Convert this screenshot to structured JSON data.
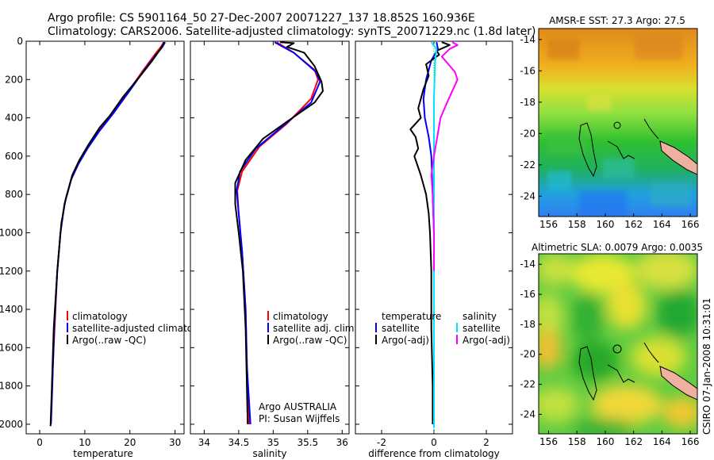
{
  "header": {
    "line1": "Argo profile: CS 5901164_50 27-Dec-2007 20071227_137 18.852S 160.936E",
    "line2": "Climatology: CARS2006. Satellite-adjusted climatology: synTS_20071229.nc (1.8d later)"
  },
  "credit": "CSIRO 07-Jan-2008 10:31:01",
  "colors": {
    "climatology": "#ff0000",
    "satellite": "#0000ff",
    "argo": "#000000",
    "diff_satellite_salinity": "#00e5ff",
    "diff_argo_salinity": "#ff00ff"
  },
  "chart_data": [
    {
      "type": "line",
      "ylim": [
        2050,
        0
      ],
      "yticks": [
        0,
        200,
        400,
        600,
        800,
        1000,
        1200,
        1400,
        1600,
        1800,
        2000
      ],
      "xlim": [
        -3,
        32
      ],
      "xticks": [
        0,
        10,
        20,
        30
      ],
      "xlabel": "temperature",
      "legend": [
        "climatology",
        "satellite-adjusted climatology",
        "Argo(..raw -QC)"
      ],
      "series": [
        {
          "name": "climatology",
          "color": "#ff0000",
          "points": [
            [
              27.5,
              5
            ],
            [
              27,
              25
            ],
            [
              25.5,
              70
            ],
            [
              23,
              150
            ],
            [
              20,
              250
            ],
            [
              16,
              380
            ],
            [
              13,
              470
            ],
            [
              10.5,
              560
            ],
            [
              8.5,
              640
            ],
            [
              7,
              720
            ],
            [
              5.5,
              850
            ],
            [
              4.6,
              1000
            ],
            [
              3.9,
              1200
            ],
            [
              3.3,
              1500
            ],
            [
              2.7,
              1800
            ]
          ]
        },
        {
          "name": "satellite-adjusted climatology",
          "color": "#0000ff",
          "points": [
            [
              27.8,
              5
            ],
            [
              27.2,
              30
            ],
            [
              25.8,
              70
            ],
            [
              23.2,
              150
            ],
            [
              20.2,
              250
            ],
            [
              16.2,
              380
            ],
            [
              13.2,
              470
            ],
            [
              10.6,
              560
            ],
            [
              8.6,
              640
            ],
            [
              7,
              720
            ],
            [
              5.5,
              850
            ],
            [
              4.6,
              1000
            ],
            [
              3.9,
              1200
            ],
            [
              3.2,
              1500
            ],
            [
              2.8,
              1800
            ],
            [
              2.5,
              2000
            ]
          ]
        },
        {
          "name": "Argo(..raw -QC)",
          "color": "#000000",
          "points": [
            [
              27.6,
              5
            ],
            [
              26.8,
              40
            ],
            [
              25,
              100
            ],
            [
              22,
              190
            ],
            [
              18.5,
              290
            ],
            [
              15.5,
              390
            ],
            [
              13.3,
              450
            ],
            [
              10.8,
              540
            ],
            [
              8.8,
              620
            ],
            [
              7.2,
              700
            ],
            [
              5.8,
              820
            ],
            [
              4.8,
              950
            ],
            [
              3.9,
              1200
            ],
            [
              3.1,
              1500
            ],
            [
              2.7,
              1800
            ],
            [
              2.4,
              2010
            ]
          ]
        }
      ]
    },
    {
      "type": "line",
      "ylim": [
        2050,
        0
      ],
      "xlim": [
        33.8,
        36.1
      ],
      "xticks": [
        34,
        34.5,
        35,
        35.5,
        36
      ],
      "xlabel": "salinity",
      "legend": [
        "climatology",
        "satellite adj. clim.",
        "Argo(..raw -QC)"
      ],
      "annotation": [
        "Argo AUSTRALIA",
        "PI: Susan Wijffels"
      ],
      "series": [
        {
          "name": "climatology",
          "color": "#ff0000",
          "points": [
            [
              35.05,
              5
            ],
            [
              35.3,
              60
            ],
            [
              35.6,
              150
            ],
            [
              35.65,
              200
            ],
            [
              35.55,
              300
            ],
            [
              35.2,
              430
            ],
            [
              34.8,
              550
            ],
            [
              34.55,
              680
            ],
            [
              34.48,
              780
            ],
            [
              34.5,
              900
            ],
            [
              34.55,
              1100
            ],
            [
              34.6,
              1400
            ],
            [
              34.62,
              1700
            ],
            [
              34.65,
              2000
            ]
          ]
        },
        {
          "name": "satellite adj. clim.",
          "color": "#0000ff",
          "points": [
            [
              35.02,
              5
            ],
            [
              35.3,
              60
            ],
            [
              35.62,
              160
            ],
            [
              35.68,
              210
            ],
            [
              35.55,
              320
            ],
            [
              35.15,
              440
            ],
            [
              34.75,
              560
            ],
            [
              34.52,
              680
            ],
            [
              34.47,
              780
            ],
            [
              34.5,
              900
            ],
            [
              34.55,
              1100
            ],
            [
              34.6,
              1400
            ],
            [
              34.62,
              1700
            ],
            [
              34.67,
              2000
            ]
          ]
        },
        {
          "name": "Argo(..raw -QC)",
          "color": "#000000",
          "points": [
            [
              35.1,
              5
            ],
            [
              35.3,
              10
            ],
            [
              35.2,
              30
            ],
            [
              35.45,
              60
            ],
            [
              35.6,
              130
            ],
            [
              35.7,
              210
            ],
            [
              35.72,
              260
            ],
            [
              35.6,
              320
            ],
            [
              35.2,
              420
            ],
            [
              34.85,
              510
            ],
            [
              34.6,
              620
            ],
            [
              34.45,
              740
            ],
            [
              34.45,
              850
            ],
            [
              34.5,
              1000
            ],
            [
              34.56,
              1200
            ],
            [
              34.6,
              1500
            ],
            [
              34.63,
              2000
            ]
          ]
        }
      ]
    },
    {
      "type": "line",
      "ylim": [
        2050,
        0
      ],
      "xlim": [
        -3,
        3
      ],
      "xticks": [
        -2,
        0,
        2
      ],
      "xlabel": "difference from climatology",
      "legend_headers": [
        "temperature",
        "salinity"
      ],
      "legend": [
        {
          "label": "satellite",
          "color": "#0000ff"
        },
        {
          "label": "satellite",
          "color": "#00e5ff"
        },
        {
          "label": "Argo(-adj)",
          "color": "#000000"
        },
        {
          "label": "Argo(-adj)",
          "color": "#ff00ff"
        }
      ],
      "series": [
        {
          "name": "temperature satellite",
          "color": "#0000ff",
          "points": [
            [
              0.1,
              5
            ],
            [
              0.15,
              40
            ],
            [
              -0.1,
              100
            ],
            [
              -0.3,
              200
            ],
            [
              -0.4,
              300
            ],
            [
              -0.35,
              400
            ],
            [
              -0.2,
              500
            ],
            [
              -0.1,
              600
            ],
            [
              -0.05,
              800
            ],
            [
              0,
              1000
            ],
            [
              0,
              1300
            ]
          ]
        },
        {
          "name": "temperature Argo(-adj)",
          "color": "#000000",
          "points": [
            [
              0.3,
              5
            ],
            [
              0.6,
              20
            ],
            [
              0.1,
              50
            ],
            [
              0.2,
              70
            ],
            [
              -0.3,
              120
            ],
            [
              -0.2,
              180
            ],
            [
              -0.4,
              250
            ],
            [
              -0.6,
              350
            ],
            [
              -0.5,
              400
            ],
            [
              -0.9,
              460
            ],
            [
              -0.7,
              500
            ],
            [
              -0.6,
              560
            ],
            [
              -0.75,
              600
            ],
            [
              -0.5,
              700
            ],
            [
              -0.3,
              800
            ],
            [
              -0.2,
              900
            ],
            [
              -0.15,
              1000
            ],
            [
              -0.1,
              1200
            ],
            [
              -0.1,
              1500
            ],
            [
              -0.05,
              1800
            ],
            [
              -0.05,
              2000
            ]
          ]
        },
        {
          "name": "salinity satellite",
          "color": "#00e5ff",
          "points": [
            [
              -0.1,
              5
            ],
            [
              0.1,
              40
            ],
            [
              0.05,
              100
            ],
            [
              0,
              300
            ],
            [
              0,
              600
            ],
            [
              0,
              1000
            ],
            [
              0,
              1500
            ],
            [
              0,
              2020
            ]
          ]
        },
        {
          "name": "salinity Argo(-adj)",
          "color": "#ff00ff",
          "points": [
            [
              0.7,
              5
            ],
            [
              0.9,
              20
            ],
            [
              0.6,
              40
            ],
            [
              0.3,
              80
            ],
            [
              0.8,
              160
            ],
            [
              0.9,
              200
            ],
            [
              0.7,
              260
            ],
            [
              0.5,
              320
            ],
            [
              0.25,
              400
            ],
            [
              0,
              600
            ],
            [
              -0.1,
              700
            ],
            [
              -0.05,
              800
            ],
            [
              0,
              1000
            ],
            [
              0,
              1200
            ]
          ]
        }
      ]
    },
    {
      "type": "heatmap",
      "title": "AMSR-E SST: 27.3 Argo: 27.5",
      "xlim": [
        155.3,
        166.5
      ],
      "xticks": [
        156,
        158,
        160,
        162,
        164,
        166
      ],
      "ylim": [
        -25.3,
        -13.3
      ],
      "yticks": [
        -14,
        -16,
        -18,
        -20,
        -22,
        -24
      ],
      "argo_position": [
        160.936,
        -18.852
      ]
    },
    {
      "type": "heatmap",
      "title": "Altimetric SLA: 0.0079 Argo: 0.0035",
      "xlim": [
        155.3,
        166.5
      ],
      "xticks": [
        156,
        158,
        160,
        162,
        164,
        166
      ],
      "ylim": [
        -25.3,
        -13.3
      ],
      "yticks": [
        -14,
        -16,
        -18,
        -20,
        -22,
        -24
      ],
      "argo_position": [
        160.936,
        -18.852
      ]
    }
  ]
}
